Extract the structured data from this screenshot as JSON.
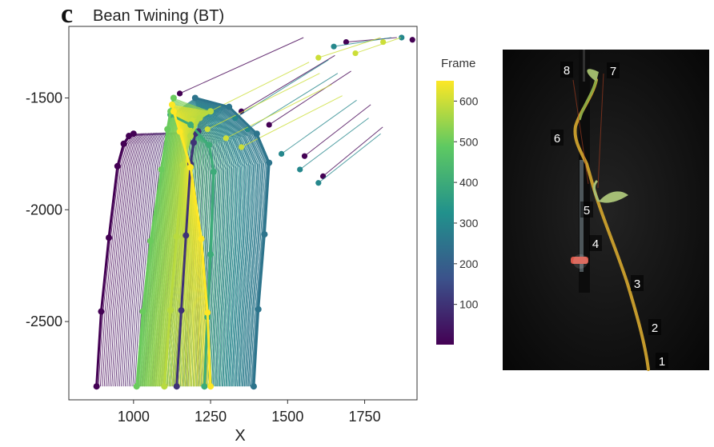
{
  "panel_label": "c",
  "photo_markers": [
    "1",
    "2",
    "3",
    "4",
    "5",
    "6",
    "7",
    "8"
  ],
  "chart_data": {
    "type": "line",
    "title": "Bean Twining  (BT)",
    "xlabel": "X",
    "ylabel": "",
    "xlim": [
      790,
      1920
    ],
    "ylim": [
      -2850,
      -1180
    ],
    "x_ticks": [
      1000,
      1250,
      1500,
      1750
    ],
    "y_ticks": [
      -1500,
      -2000,
      -2500
    ],
    "grid": false,
    "colorbar": {
      "label": "Frame",
      "range": [
        1,
        650
      ],
      "ticks": [
        100,
        200,
        300,
        400,
        500,
        600
      ],
      "colormap": [
        "#440154",
        "#3b528b",
        "#21918c",
        "#5ec962",
        "#fde725"
      ]
    },
    "series": [
      {
        "frame": 1,
        "x": [
          880,
          895,
          920,
          948,
          968,
          985,
          1000
        ],
        "y": [
          -2790,
          -2455,
          -2125,
          -1805,
          -1705,
          -1670,
          -1660
        ]
      },
      {
        "frame": 100,
        "x": [
          1140,
          1155,
          1170,
          1185,
          1195,
          1200,
          1210
        ],
        "y": [
          -2790,
          -2450,
          -2115,
          -1795,
          -1700,
          -1660,
          -1650
        ]
      },
      {
        "frame": 250,
        "x": [
          1390,
          1405,
          1425,
          1440,
          1400,
          1310,
          1200
        ],
        "y": [
          -2790,
          -2445,
          -2110,
          -1790,
          -1660,
          -1540,
          -1500
        ]
      },
      {
        "frame": 400,
        "x": [
          1230,
          1240,
          1250,
          1260,
          1245,
          1185,
          1120
        ],
        "y": [
          -2790,
          -2480,
          -2200,
          -1830,
          -1710,
          -1620,
          -1575
        ]
      },
      {
        "frame": 500,
        "x": [
          1010,
          1030,
          1055,
          1090,
          1110,
          1120,
          1130
        ],
        "y": [
          -2790,
          -2455,
          -2140,
          -1820,
          -1640,
          -1560,
          -1500
        ]
      },
      {
        "frame": 580,
        "x": [
          1100,
          1120,
          1140,
          1160,
          1185,
          1215,
          1250
        ],
        "y": [
          -2790,
          -2450,
          -2120,
          -1800,
          -1670,
          -1590,
          -1560
        ]
      },
      {
        "frame": 650,
        "x": [
          1250,
          1240,
          1220,
          1185,
          1150,
          1130,
          1125
        ],
        "y": [
          -2790,
          -2460,
          -2130,
          -1810,
          -1650,
          -1560,
          -1530
        ]
      }
    ],
    "tip_tracks": [
      {
        "frame": 1,
        "x": [
          1150,
          1350,
          1440,
          1555,
          1615,
          1690,
          1905
        ],
        "y": [
          -1480,
          -1560,
          -1620,
          -1760,
          -1850,
          -1250,
          -1240
        ]
      },
      {
        "frame": 300,
        "x": [
          1330,
          1370,
          1480,
          1540,
          1600,
          1650,
          1870
        ],
        "y": [
          -1590,
          -1640,
          -1750,
          -1820,
          -1880,
          -1270,
          -1230
        ]
      },
      {
        "frame": 600,
        "x": [
          1190,
          1240,
          1300,
          1350,
          1600,
          1720,
          1810
        ],
        "y": [
          -1600,
          -1640,
          -1680,
          -1720,
          -1320,
          -1300,
          -1250
        ]
      }
    ]
  }
}
